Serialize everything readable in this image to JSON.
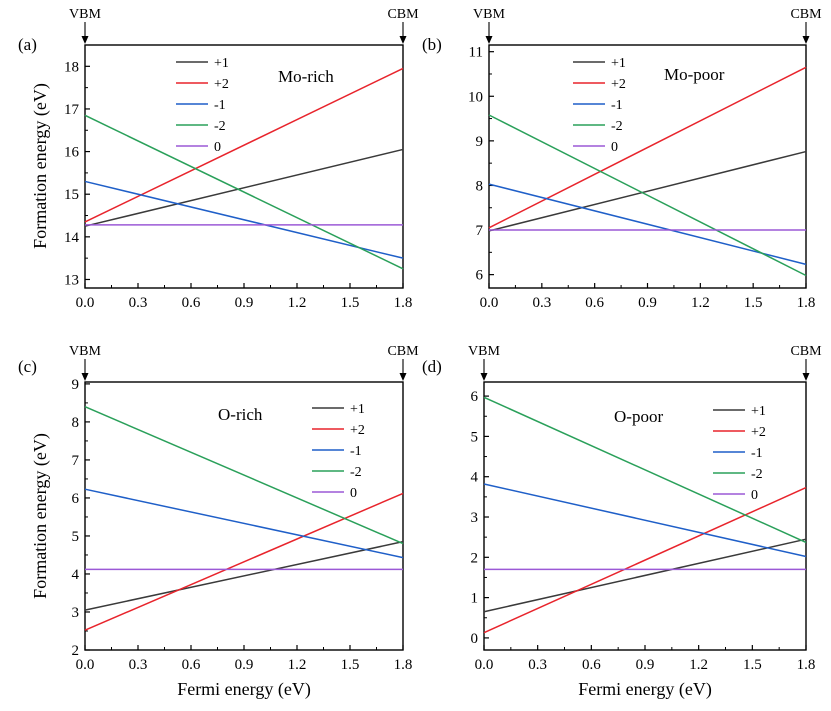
{
  "colors": {
    "+1": "#3a3a3a",
    "+2": "#e8242c",
    "-1": "#1f5fc8",
    "-2": "#2aa05a",
    "0": "#9b59d6"
  },
  "chart_data": [
    {
      "type": "line",
      "panel": "(a)",
      "annotation": "Mo-rich",
      "xlabel": "",
      "ylabel": "Formation energy (eV)",
      "xlim": [
        0,
        1.8
      ],
      "ylim": [
        12.8,
        18.5
      ],
      "xticks": [
        "0.0",
        "0.3",
        "0.6",
        "0.9",
        "1.2",
        "1.5",
        "1.8"
      ],
      "yticks": [
        13,
        14,
        15,
        16,
        17,
        18
      ],
      "markers": [
        "VBM",
        "CBM"
      ],
      "legend": [
        "+1",
        "+2",
        "-1",
        "-2",
        "0"
      ],
      "series": [
        {
          "name": "+1",
          "values": [
            14.25,
            16.05
          ]
        },
        {
          "name": "+2",
          "values": [
            14.35,
            17.95
          ]
        },
        {
          "name": "-1",
          "values": [
            15.3,
            13.5
          ]
        },
        {
          "name": "-2",
          "values": [
            16.85,
            13.25
          ]
        },
        {
          "name": "0",
          "values": [
            14.28,
            14.28
          ]
        }
      ]
    },
    {
      "type": "line",
      "panel": "(b)",
      "annotation": "Mo-poor",
      "xlabel": "",
      "ylabel": "",
      "xlim": [
        0,
        1.8
      ],
      "ylim": [
        5.7,
        11.15
      ],
      "xticks": [
        "0.0",
        "0.3",
        "0.6",
        "0.9",
        "1.2",
        "1.5",
        "1.8"
      ],
      "yticks": [
        6,
        7,
        8,
        9,
        10,
        11
      ],
      "markers": [
        "VBM",
        "CBM"
      ],
      "legend": [
        "+1",
        "+2",
        "-1",
        "-2",
        "0"
      ],
      "series": [
        {
          "name": "+1",
          "values": [
            6.98,
            8.76
          ]
        },
        {
          "name": "+2",
          "values": [
            7.05,
            10.65
          ]
        },
        {
          "name": "-1",
          "values": [
            8.03,
            6.23
          ]
        },
        {
          "name": "-2",
          "values": [
            9.58,
            5.98
          ]
        },
        {
          "name": "0",
          "values": [
            7.0,
            7.0
          ]
        }
      ]
    },
    {
      "type": "line",
      "panel": "(c)",
      "annotation": "O-rich",
      "xlabel": "Fermi energy (eV)",
      "ylabel": "Formation energy (eV)",
      "xlim": [
        0,
        1.8
      ],
      "ylim": [
        2,
        9.05
      ],
      "xticks": [
        "0.0",
        "0.3",
        "0.6",
        "0.9",
        "1.2",
        "1.5",
        "1.8"
      ],
      "yticks": [
        2,
        3,
        4,
        5,
        6,
        7,
        8,
        9
      ],
      "markers": [
        "VBM",
        "CBM"
      ],
      "legend": [
        "+1",
        "+2",
        "-1",
        "-2",
        "0"
      ],
      "series": [
        {
          "name": "+1",
          "values": [
            3.05,
            4.85
          ]
        },
        {
          "name": "+2",
          "values": [
            2.52,
            6.12
          ]
        },
        {
          "name": "-1",
          "values": [
            6.23,
            4.43
          ]
        },
        {
          "name": "-2",
          "values": [
            8.4,
            4.8
          ]
        },
        {
          "name": "0",
          "values": [
            4.12,
            4.12
          ]
        }
      ]
    },
    {
      "type": "line",
      "panel": "(d)",
      "annotation": "O-poor",
      "xlabel": "Fermi energy (eV)",
      "ylabel": "",
      "xlim": [
        0,
        1.8
      ],
      "ylim": [
        -0.3,
        6.35
      ],
      "xticks": [
        "0.0",
        "0.3",
        "0.6",
        "0.9",
        "1.2",
        "1.5",
        "1.8"
      ],
      "yticks": [
        0,
        1,
        2,
        3,
        4,
        5,
        6
      ],
      "markers": [
        "VBM",
        "CBM"
      ],
      "legend": [
        "+1",
        "+2",
        "-1",
        "-2",
        "0"
      ],
      "series": [
        {
          "name": "+1",
          "values": [
            0.65,
            2.45
          ]
        },
        {
          "name": "+2",
          "values": [
            0.13,
            3.73
          ]
        },
        {
          "name": "-1",
          "values": [
            3.82,
            2.02
          ]
        },
        {
          "name": "-2",
          "values": [
            5.97,
            2.37
          ]
        },
        {
          "name": "0",
          "values": [
            1.7,
            1.7
          ]
        }
      ]
    }
  ]
}
